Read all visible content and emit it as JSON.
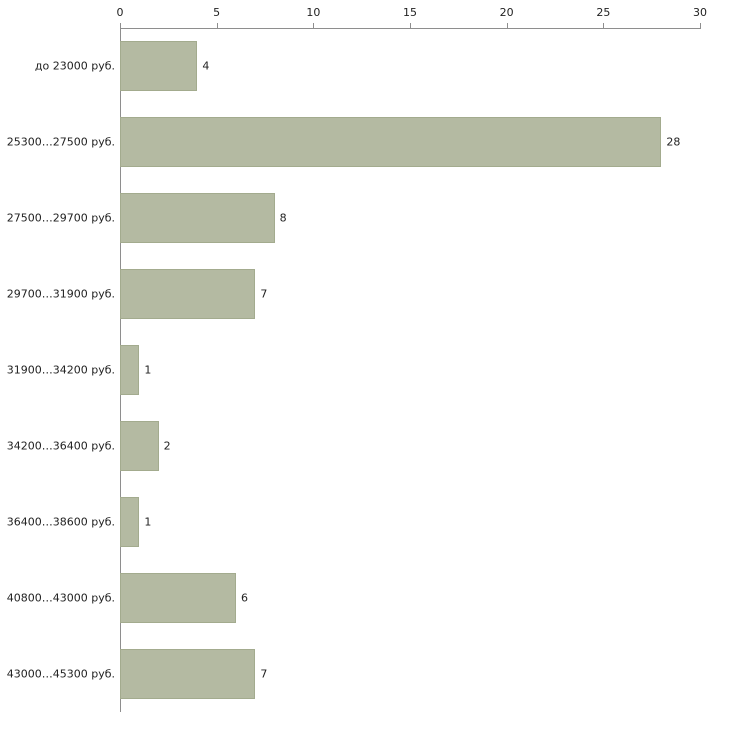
{
  "chart_data": {
    "type": "bar",
    "orientation": "horizontal",
    "title": "",
    "xlabel": "",
    "ylabel": "",
    "categories": [
      "до 23000 руб.",
      "25300…27500 руб.",
      "27500…29700 руб.",
      "29700…31900 руб.",
      "31900…34200 руб.",
      "34200…36400 руб.",
      "36400…38600 руб.",
      "40800…43000 руб.",
      "43000…45300 руб."
    ],
    "values": [
      4,
      28,
      8,
      7,
      1,
      2,
      1,
      6,
      7
    ],
    "value_labels": [
      "4",
      "28",
      "8",
      "7",
      "1",
      "2",
      "1",
      "6",
      "7"
    ],
    "xlim": [
      0,
      30
    ],
    "xticks": [
      0,
      5,
      10,
      15,
      20,
      25,
      30
    ],
    "xtick_labels": [
      "0",
      "5",
      "10",
      "15",
      "20",
      "25",
      "30"
    ],
    "grid": false,
    "legend": "none",
    "colors": {
      "bar_fill": "#b4baa2",
      "bar_border": "#a3ab8e",
      "axis": "#8e8e8e",
      "text": "#222222",
      "background": "#ffffff"
    }
  }
}
